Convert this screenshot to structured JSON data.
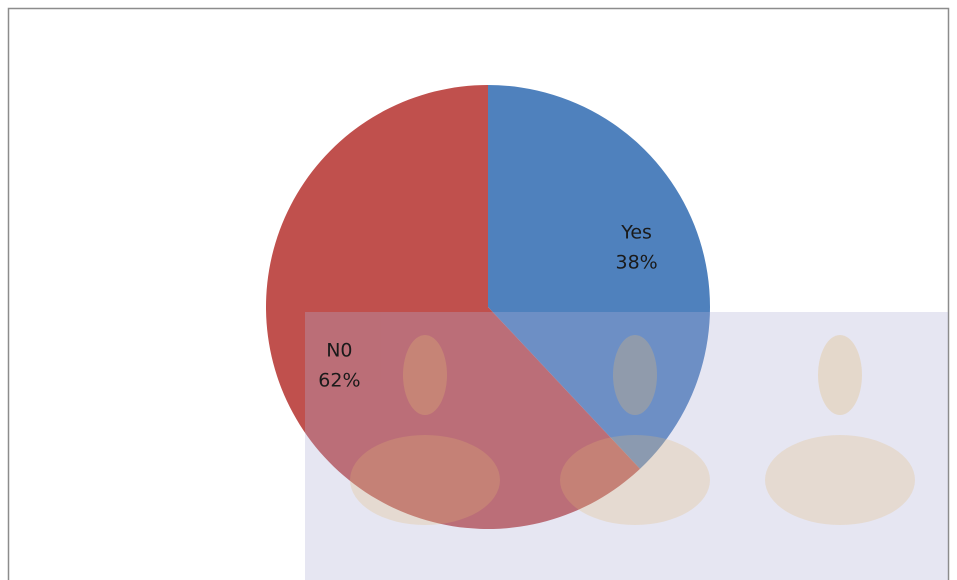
{
  "chart_data": {
    "type": "pie",
    "categories": [
      "Yes",
      "N0"
    ],
    "values": [
      38,
      62
    ],
    "value_labels": [
      "38%",
      "62%"
    ],
    "colors": [
      "#4f81bd",
      "#c0504d"
    ]
  }
}
